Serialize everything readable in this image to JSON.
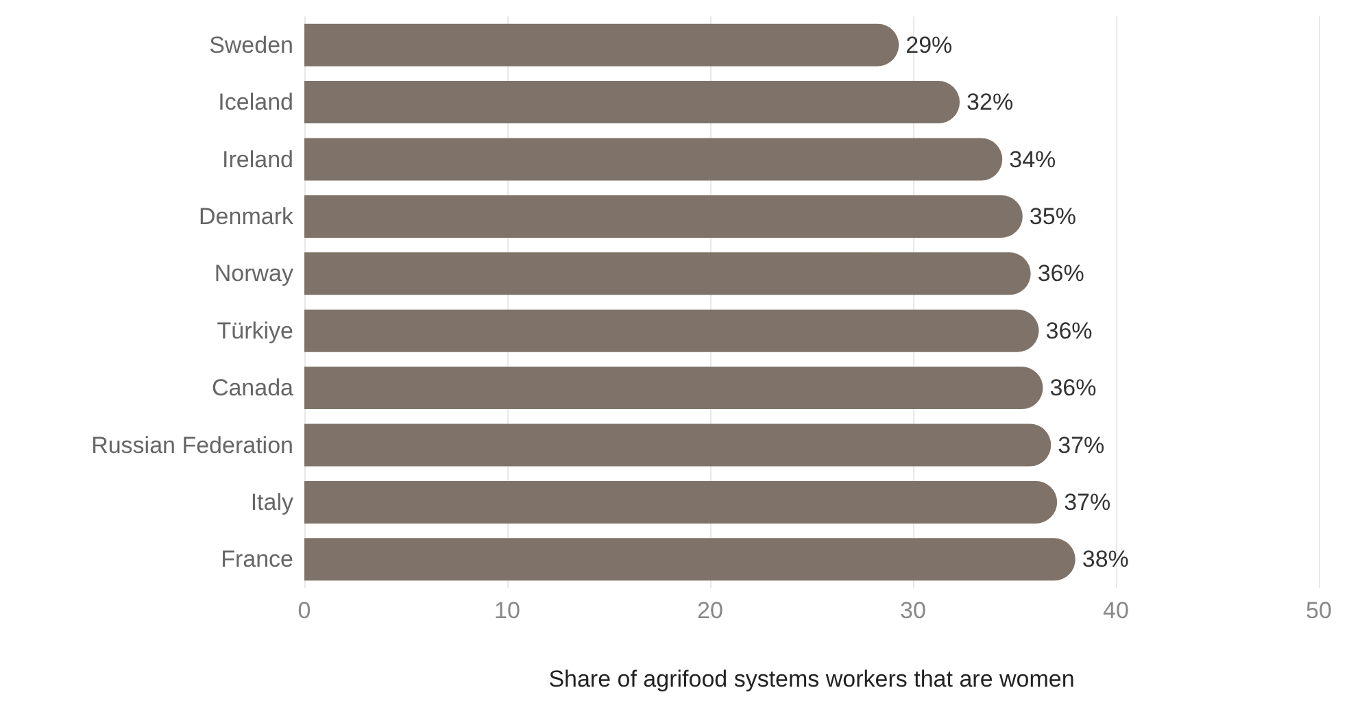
{
  "chart_data": {
    "type": "bar",
    "orientation": "horizontal",
    "xlabel": "Share of agrifood systems workers that are women",
    "categories": [
      "Sweden",
      "Iceland",
      "Ireland",
      "Denmark",
      "Norway",
      "Türkiye",
      "Canada",
      "Russian Federation",
      "Italy",
      "France"
    ],
    "values": [
      29.3,
      32.3,
      34.4,
      35.4,
      35.8,
      36.2,
      36.4,
      36.8,
      37.1,
      38.0
    ],
    "value_labels": [
      "29%",
      "32%",
      "34%",
      "35%",
      "36%",
      "36%",
      "36%",
      "37%",
      "37%",
      "38%"
    ],
    "color": "#7f7369",
    "xlim": [
      0,
      50
    ],
    "xticks": [
      0,
      10,
      20,
      30,
      40,
      50
    ],
    "grid": "x"
  }
}
